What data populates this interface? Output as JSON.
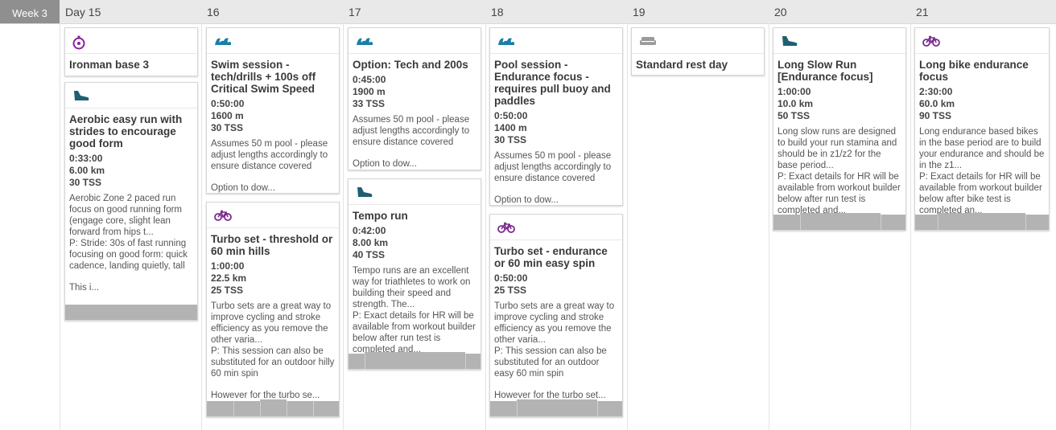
{
  "week": "Week 3",
  "days": [
    "Day 15",
    "16",
    "17",
    "18",
    "19",
    "20",
    "21"
  ],
  "colors": {
    "header_bg": "#e9e9e9",
    "week_bg": "#8f8f8f",
    "run_icon": "#1f5f74",
    "swim_icon": "#1a7fa8",
    "bike_icon": "#7b2a8e",
    "brick_icon": "#8b1fa0",
    "rest_icon": "#9a9a9a",
    "footer_bar": "#b3b3b3"
  },
  "cards": {
    "d15_brick": {
      "icon": "stopwatch-icon",
      "title": "Ironman base 3"
    },
    "d15_run": {
      "icon": "running-shoe-icon",
      "title": "Aerobic easy run with strides to encourage good form",
      "duration": "0:33:00",
      "distance": "6.00 km",
      "tss": "30 TSS",
      "desc": "Aerobic Zone 2 paced run focus on good running form (engage core, slight lean forward from hips t...\nP: Stride: 30s of fast running focusing on good form: quick cadence, landing quietly, tall",
      "more": "This i..."
    },
    "d16_swim": {
      "icon": "swim-wave-icon",
      "title": "Swim session - tech/drills + 100s off Critical Swim Speed",
      "duration": "0:50:00",
      "distance": "1600 m",
      "tss": "30 TSS",
      "desc": "Assumes 50 m pool - please adjust lengths accordingly to ensure distance covered",
      "more": "Option to dow..."
    },
    "d16_bike": {
      "icon": "bike-icon",
      "title": "Turbo set - threshold or 60 min hills",
      "duration": "1:00:00",
      "distance": "22.5 km",
      "tss": "25 TSS",
      "desc": "Turbo sets are a great way to improve cycling and stroke efficiency as you remove the other varia...\nP: This session can also be substituted for an outdoor hilly 60 min spin",
      "more": "However for the turbo se..."
    },
    "d17_swim": {
      "icon": "swim-wave-icon",
      "title": "Option: Tech and 200s",
      "duration": "0:45:00",
      "distance": "1900 m",
      "tss": "33 TSS",
      "desc": "Assumes 50 m pool - please adjust lengths accordingly to ensure distance covered",
      "more": "Option to dow..."
    },
    "d17_run": {
      "icon": "running-shoe-icon",
      "title": "Tempo run",
      "duration": "0:42:00",
      "distance": "8.00 km",
      "tss": "40 TSS",
      "desc": "Tempo runs are an excellent way for triathletes to work on building their speed and strength. The...\nP: Exact details for HR will be available from workout builder below after run test is completed and...",
      "more": ""
    },
    "d18_swim": {
      "icon": "swim-wave-icon",
      "title": "Pool session - Endurance focus - requires pull buoy and paddles",
      "duration": "0:50:00",
      "distance": "1400 m",
      "tss": "30 TSS",
      "desc": "Assumes 50 m pool - please adjust lengths accordingly to ensure distance covered",
      "more": "Option to dow..."
    },
    "d18_bike": {
      "icon": "bike-icon",
      "title": "Turbo set - endurance or 60 min easy spin",
      "duration": "0:50:00",
      "distance": "",
      "tss": "25 TSS",
      "desc": "Turbo sets are a great way to improve cycling and stroke efficiency as you remove the other varia...\nP: This session can also be substituted for an outdoor easy 60 min spin",
      "more": "However for the turbo set..."
    },
    "d19_rest": {
      "icon": "couch-icon",
      "title": "Standard rest day"
    },
    "d20_run": {
      "icon": "running-shoe-icon",
      "title": "Long Slow Run [Endurance focus]",
      "duration": "1:00:00",
      "distance": "10.0 km",
      "tss": "50 TSS",
      "desc": "Long slow runs are designed to build your run stamina and should be in z1/z2 for the base period...\nP: Exact details for HR will be available from workout builder below after run test is completed and...",
      "more": ""
    },
    "d21_bike": {
      "icon": "bike-icon",
      "title": "Long bike endurance focus",
      "duration": "2:30:00",
      "distance": "60.0 km",
      "tss": "90 TSS",
      "desc": "Long endurance based bikes in the base period are to build your endurance and should be in the z1...\nP: Exact details for HR will be available from workout builder below after bike test is completed an...",
      "more": ""
    }
  }
}
